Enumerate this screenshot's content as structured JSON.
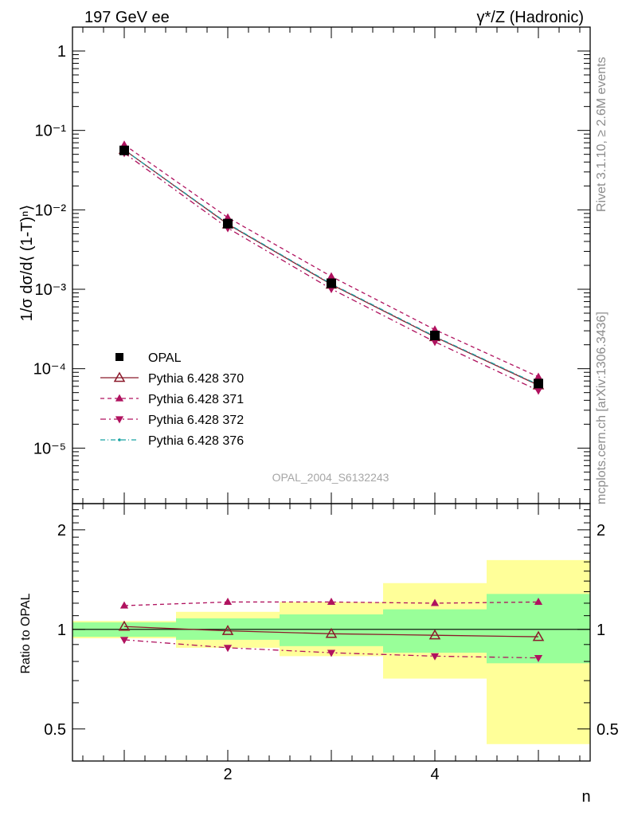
{
  "header": {
    "left": "197 GeV ee",
    "right": "γ*/Z (Hadronic)"
  },
  "side_text": {
    "top": "Rivet 3.1.10, ≥ 2.6M events",
    "bottom": "mcplots.cern.ch [arXiv:1306.3436]"
  },
  "watermark": "OPAL_2004_S6132243",
  "chart_data": [
    {
      "type": "scatter",
      "panel": "main",
      "ylabel": "1/σ dσ/d⟨ (1-T)ⁿ⟩",
      "yscale": "log",
      "ylim": [
        2e-06,
        2
      ],
      "xlim": [
        0.5,
        5.5
      ],
      "x": [
        1,
        2,
        3,
        4,
        5
      ],
      "ytick_labels": [
        "1",
        "10⁻¹",
        "10⁻²",
        "10⁻³",
        "10⁻⁴",
        "10⁻⁵"
      ],
      "legend_placement": "middle-left",
      "series": [
        {
          "name": "OPAL",
          "style": "data",
          "color": "#000000",
          "marker": "filled-square",
          "values": [
            0.056,
            0.0067,
            0.00119,
            0.000262,
            6.5e-05
          ]
        },
        {
          "name": "Pythia 6.428 370",
          "style": "solid",
          "color": "#8b1a2b",
          "marker": "open-triangle-up",
          "values": [
            0.057,
            0.0066,
            0.00115,
            0.000251,
            6.2e-05
          ]
        },
        {
          "name": "Pythia 6.428 371",
          "style": "dashed",
          "color": "#b0125f",
          "marker": "filled-triangle-up",
          "values": [
            0.066,
            0.008,
            0.00145,
            0.00031,
            7.9e-05
          ]
        },
        {
          "name": "Pythia 6.428 372",
          "style": "dashdot",
          "color": "#b0125f",
          "marker": "filled-triangle-down",
          "values": [
            0.052,
            0.0059,
            0.00101,
            0.000218,
            5.3e-05
          ]
        },
        {
          "name": "Pythia 6.428 376",
          "style": "dashdot-teal",
          "color": "#17a3a3",
          "marker": "small-dot",
          "values": [
            0.057,
            0.0067,
            0.00117,
            0.000255,
            6.3e-05
          ]
        }
      ]
    },
    {
      "type": "scatter",
      "panel": "ratio",
      "ylabel": "Ratio to OPAL",
      "xlabel": "n",
      "yscale": "log",
      "ylim": [
        0.4,
        2.4
      ],
      "xlim": [
        0.5,
        5.5
      ],
      "x": [
        1,
        2,
        3,
        4,
        5
      ],
      "xtick_labels": [
        "2",
        "4"
      ],
      "ytick_labels": [
        "0.5",
        "1",
        "2"
      ],
      "bands": {
        "x_edges": [
          [
            0.5,
            1.5
          ],
          [
            1.5,
            2.5
          ],
          [
            2.5,
            3.5
          ],
          [
            3.5,
            4.5
          ],
          [
            4.5,
            5.5
          ]
        ],
        "green": [
          [
            0.95,
            1.05
          ],
          [
            0.93,
            1.08
          ],
          [
            0.89,
            1.11
          ],
          [
            0.85,
            1.15
          ],
          [
            0.79,
            1.28
          ]
        ],
        "yellow": [
          [
            0.94,
            1.06
          ],
          [
            0.88,
            1.13
          ],
          [
            0.83,
            1.21
          ],
          [
            0.71,
            1.38
          ],
          [
            0.45,
            1.62
          ]
        ],
        "green_color": "#99ff99",
        "yellow_color": "#ffff99"
      },
      "series": [
        {
          "name": "Pythia 6.428 370",
          "values": [
            1.02,
            0.99,
            0.97,
            0.96,
            0.95
          ]
        },
        {
          "name": "Pythia 6.428 371",
          "values": [
            1.18,
            1.21,
            1.21,
            1.2,
            1.21
          ]
        },
        {
          "name": "Pythia 6.428 372",
          "values": [
            0.93,
            0.88,
            0.85,
            0.83,
            0.82
          ]
        }
      ]
    }
  ]
}
